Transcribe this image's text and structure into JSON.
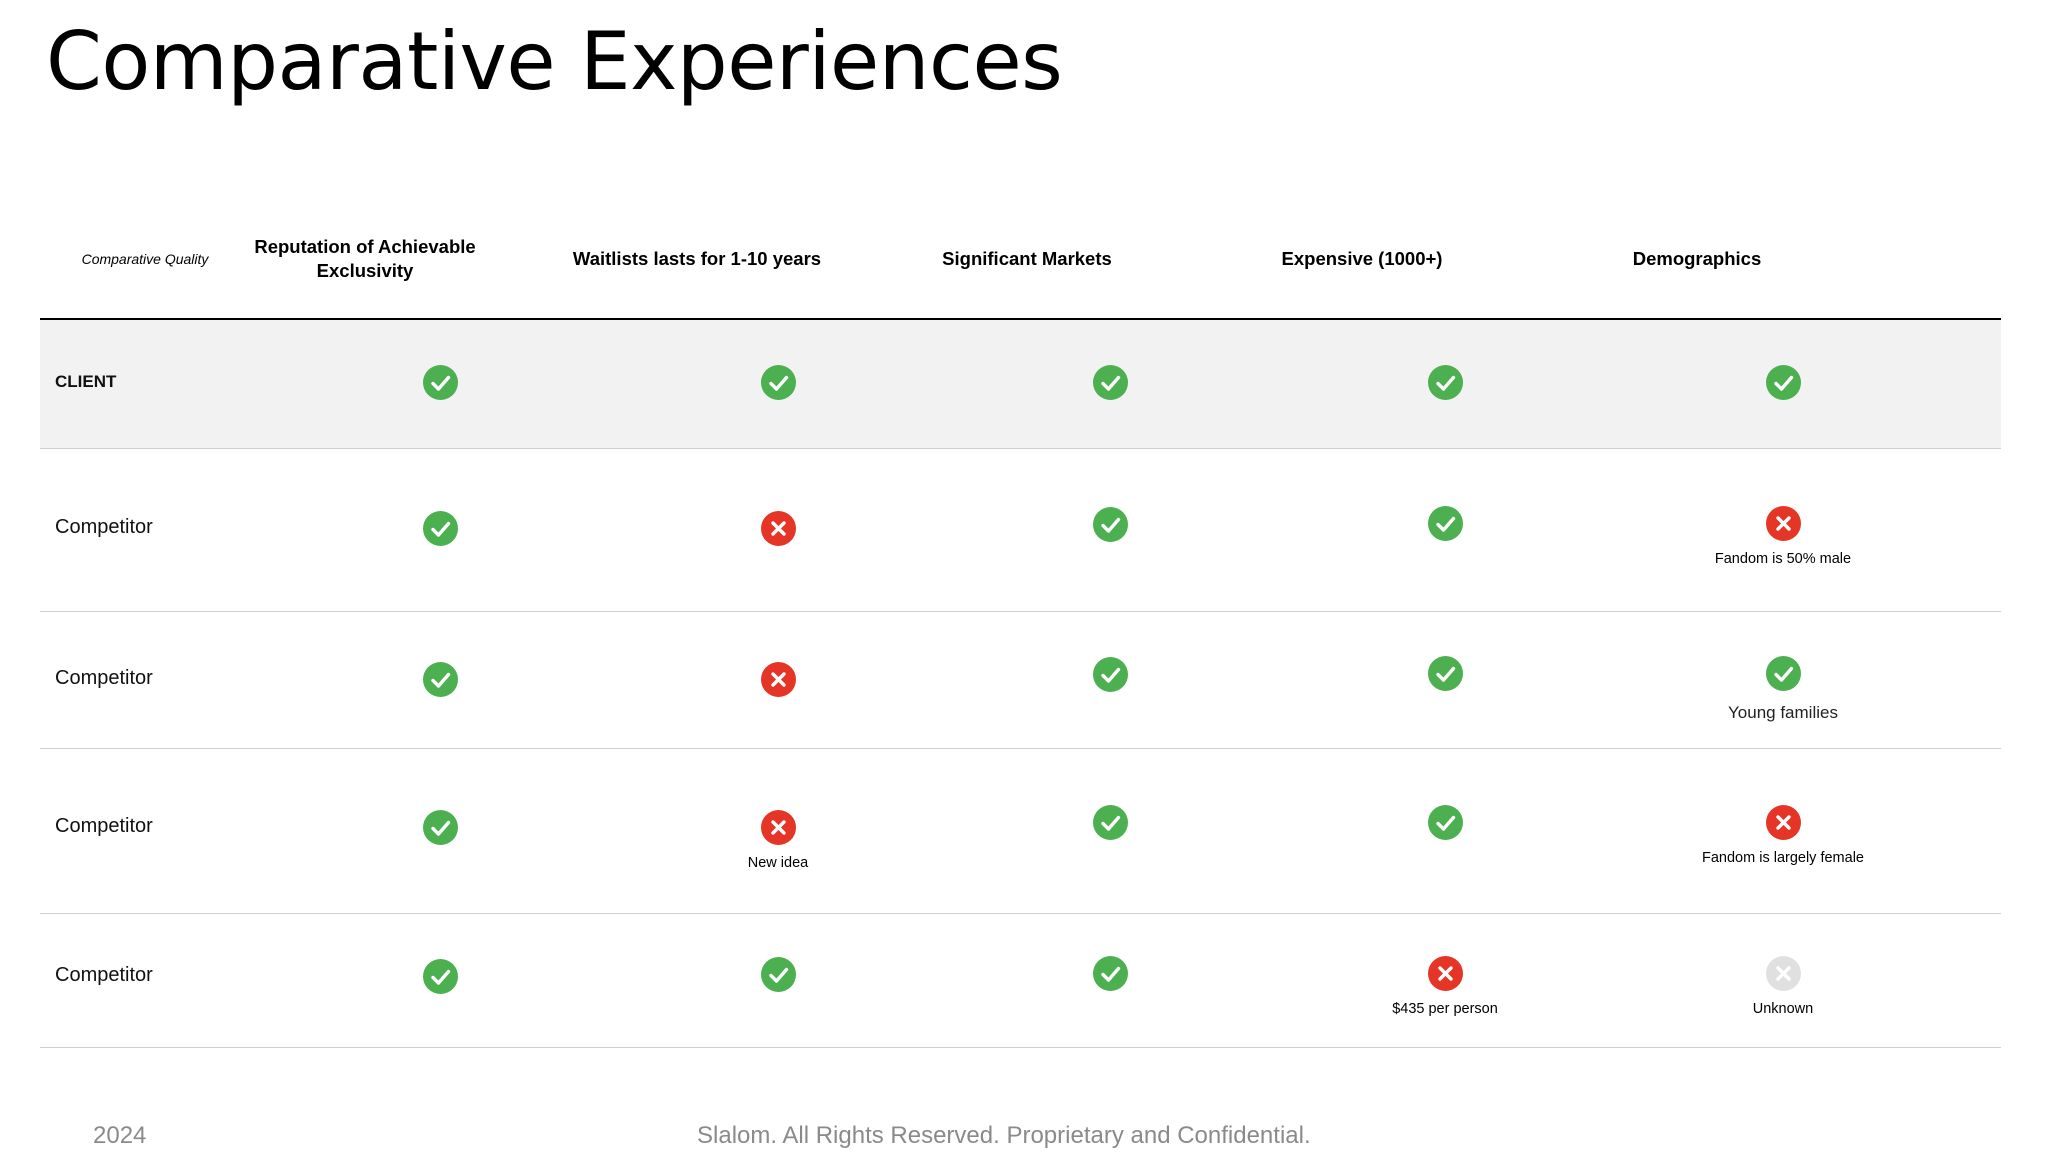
{
  "title": "Comparative Experiences",
  "header": {
    "quality": "Comparative Quality",
    "columns": [
      "Reputation of Achievable Exclusivity",
      "Waitlists lasts for 1-10 years",
      "Significant Markets",
      "Expensive (1000+)",
      "Demographics"
    ]
  },
  "rows": [
    {
      "label": "CLIENT",
      "cells": [
        {
          "status": "check",
          "note": ""
        },
        {
          "status": "check",
          "note": ""
        },
        {
          "status": "check",
          "note": ""
        },
        {
          "status": "check",
          "note": ""
        },
        {
          "status": "check",
          "note": ""
        }
      ]
    },
    {
      "label": "Competitor",
      "cells": [
        {
          "status": "check",
          "note": ""
        },
        {
          "status": "cross",
          "note": ""
        },
        {
          "status": "check",
          "note": ""
        },
        {
          "status": "check",
          "note": ""
        },
        {
          "status": "cross",
          "note": "Fandom is 50% male"
        }
      ]
    },
    {
      "label": "Competitor",
      "cells": [
        {
          "status": "check",
          "note": ""
        },
        {
          "status": "cross",
          "note": ""
        },
        {
          "status": "check",
          "note": ""
        },
        {
          "status": "check",
          "note": ""
        },
        {
          "status": "check",
          "note": "Young families"
        }
      ]
    },
    {
      "label": "Competitor",
      "cells": [
        {
          "status": "check",
          "note": ""
        },
        {
          "status": "cross",
          "note": "New idea"
        },
        {
          "status": "check",
          "note": ""
        },
        {
          "status": "check",
          "note": ""
        },
        {
          "status": "cross",
          "note": "Fandom is largely female"
        }
      ]
    },
    {
      "label": "Competitor",
      "cells": [
        {
          "status": "check",
          "note": ""
        },
        {
          "status": "check",
          "note": ""
        },
        {
          "status": "check",
          "note": ""
        },
        {
          "status": "cross",
          "note": "$435 per person"
        },
        {
          "status": "unknown",
          "note": "Unknown"
        }
      ]
    }
  ],
  "colors": {
    "check": "#4caf50",
    "cross": "#e53527",
    "unknown": "#e0e0e0"
  },
  "footer": {
    "year": "2024",
    "legal": "Slalom. All Rights Reserved. Proprietary and Confidential."
  }
}
